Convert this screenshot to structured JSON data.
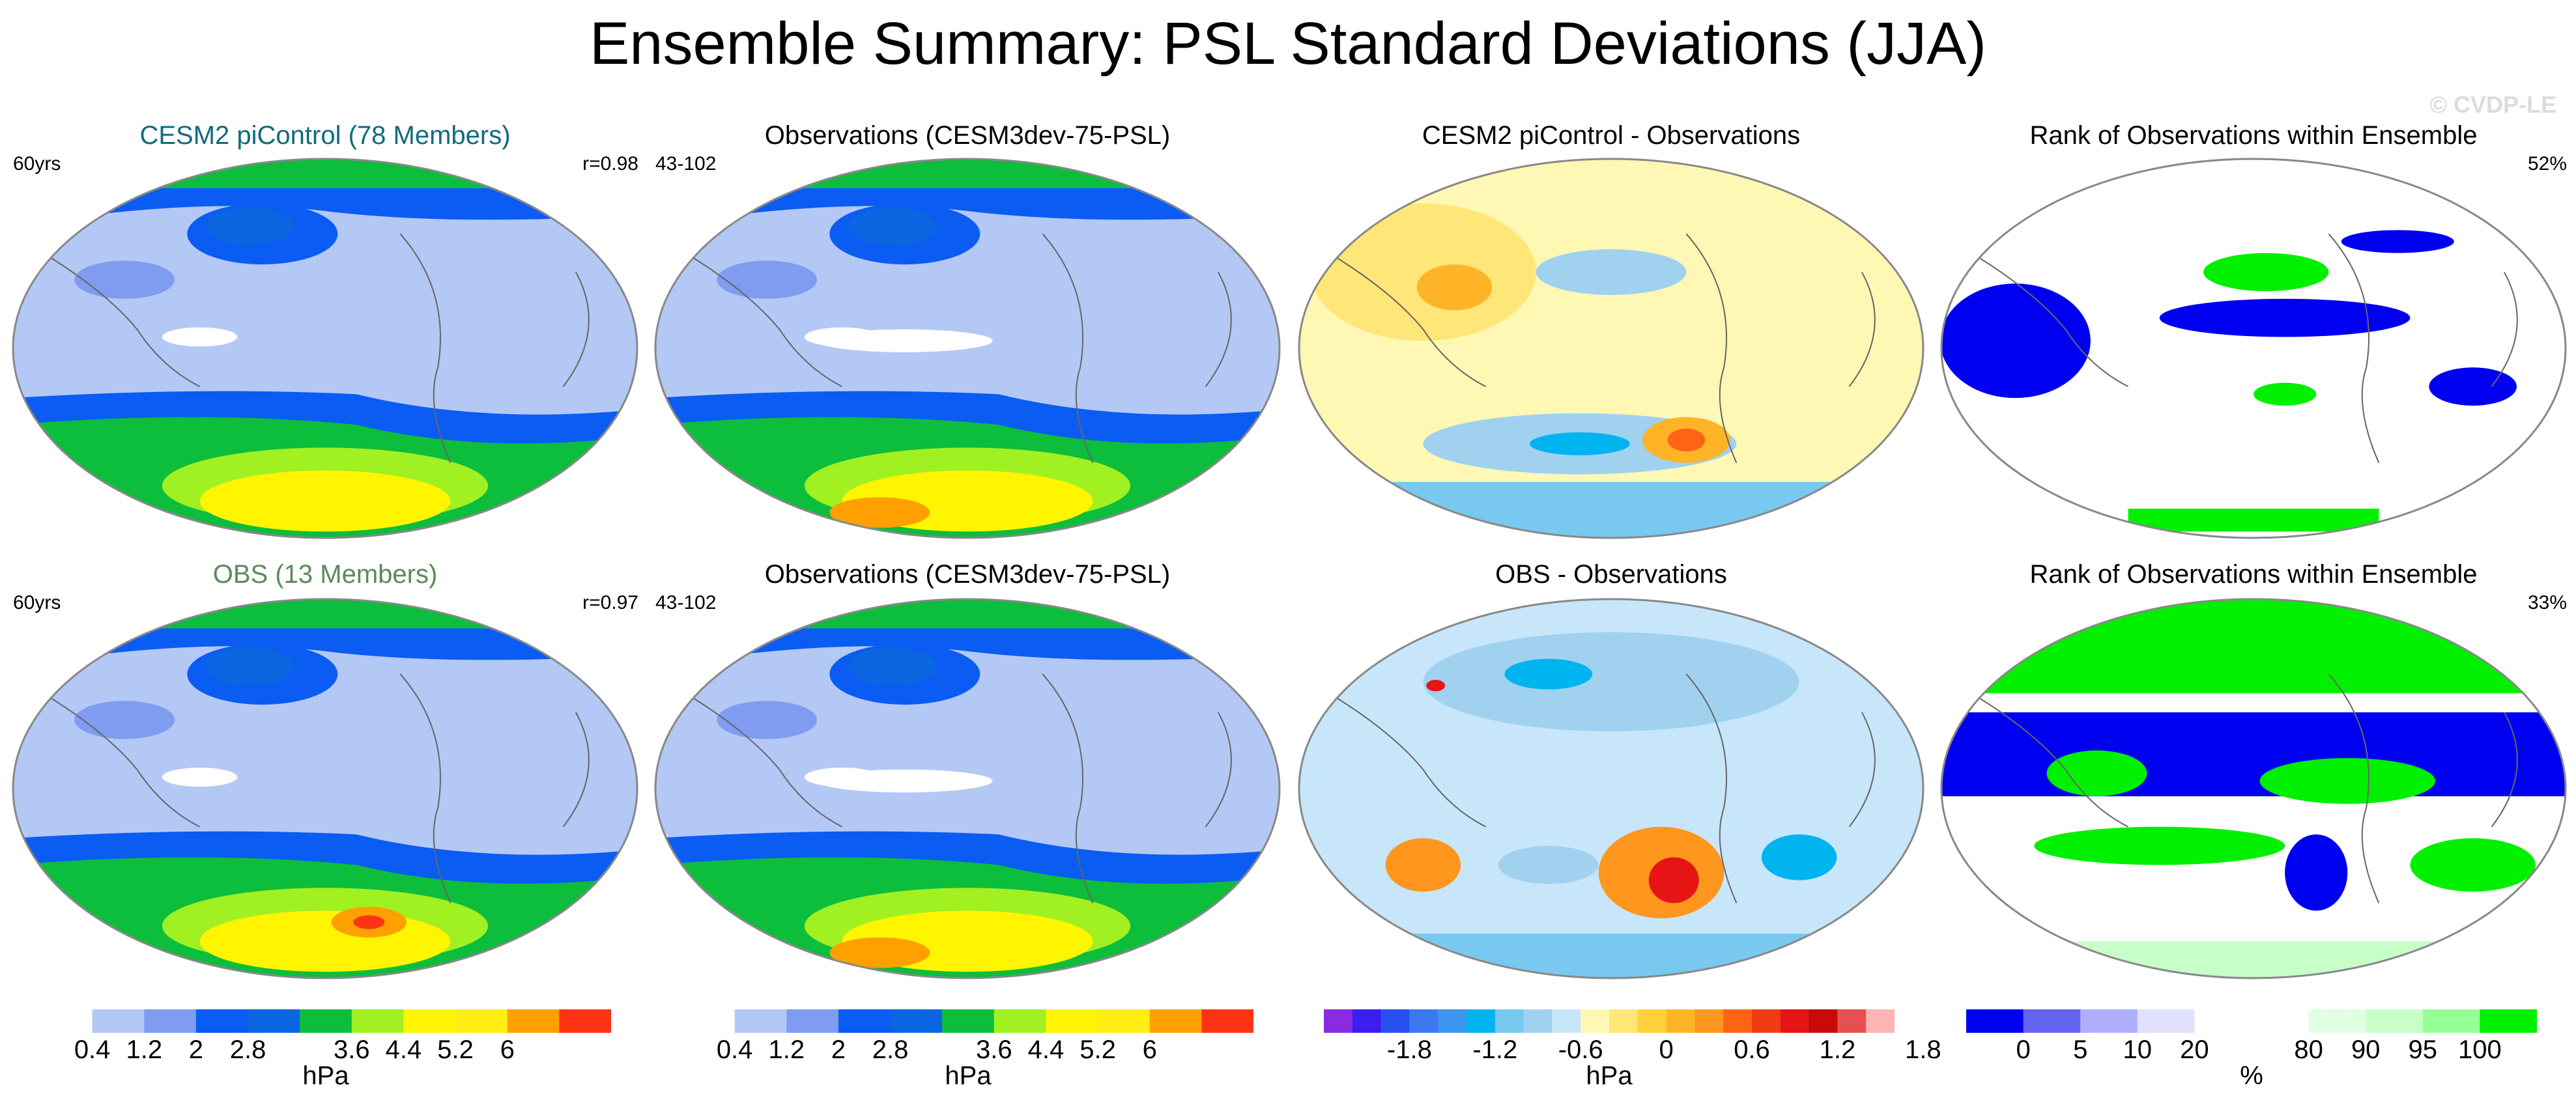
{
  "title": "Ensemble Summary: PSL Standard Deviations (JJA)",
  "watermark": "© CVDP-LE",
  "colors": {
    "title_model": "#0f6b7d",
    "title_obs": "#5b8a5b",
    "map_outline": "#888888",
    "coast": "#666666"
  },
  "panels": [
    {
      "title": "CESM2 piControl (78 Members)",
      "title_color": "#0f6b7d",
      "left": "60yrs",
      "right": "r=0.98",
      "kind": "std_model"
    },
    {
      "title": "Observations (CESM3dev-75-PSL)",
      "title_color": "#000000",
      "left": "43-102",
      "right": "",
      "kind": "std_obs"
    },
    {
      "title": "CESM2 piControl - Observations",
      "title_color": "#000000",
      "left": "",
      "right": "",
      "kind": "diff_model"
    },
    {
      "title": "Rank of Observations within Ensemble",
      "title_color": "#000000",
      "left": "",
      "right": "52%",
      "kind": "rank_model"
    },
    {
      "title": "OBS (13 Members)",
      "title_color": "#5b8a5b",
      "left": "60yrs",
      "right": "r=0.97",
      "kind": "std_model2"
    },
    {
      "title": "Observations (CESM3dev-75-PSL)",
      "title_color": "#000000",
      "left": "43-102",
      "right": "",
      "kind": "std_obs2"
    },
    {
      "title": "OBS - Observations",
      "title_color": "#000000",
      "left": "",
      "right": "",
      "kind": "diff_obs"
    },
    {
      "title": "Rank of Observations within Ensemble",
      "title_color": "#000000",
      "left": "",
      "right": "33%",
      "kind": "rank_obs"
    }
  ],
  "colorbars": [
    {
      "unit": "hPa",
      "labels": [
        "0.4",
        "1.2",
        "2",
        "2.8",
        "3.6",
        "4.4",
        "5.2",
        "6"
      ],
      "colors": [
        "#ffffff",
        "#b4c8f5",
        "#7f9cf0",
        "#0a5cf2",
        "#0a66e0",
        "#0dbd3c",
        "#a0f022",
        "#fff500",
        "#ffee14",
        "#ffa000",
        "#ff3214"
      ]
    },
    {
      "unit": "hPa",
      "labels": [
        "0.4",
        "1.2",
        "2",
        "2.8",
        "3.6",
        "4.4",
        "5.2",
        "6"
      ],
      "colors": [
        "#ffffff",
        "#b4c8f5",
        "#7f9cf0",
        "#0a5cf2",
        "#0a66e0",
        "#0dbd3c",
        "#a0f022",
        "#fff500",
        "#ffee14",
        "#ffa000",
        "#ff3214"
      ]
    },
    {
      "unit": "hPa",
      "labels": [
        "-1.8",
        "-1.2",
        "-0.6",
        "0",
        "0.6",
        "1.2",
        "1.8"
      ],
      "colors": [
        "#8a2be2",
        "#3c1ef0",
        "#2850f0",
        "#3c78f0",
        "#3c96f0",
        "#00b4f0",
        "#78c8f0",
        "#a0d2f0",
        "#c8e6fa",
        "#fff8b4",
        "#ffe678",
        "#ffd23c",
        "#ffb428",
        "#ff961e",
        "#ff6414",
        "#f03c14",
        "#e61414",
        "#c80a0a",
        "#e65050",
        "#ffb4b4"
      ]
    },
    {
      "unit": "%",
      "labels": [
        "0",
        "5",
        "10",
        "20",
        "80",
        "90",
        "95",
        "100"
      ],
      "colors": [
        "#0000f0",
        "#6464f0",
        "#afafff",
        "#e1e1ff",
        "#ffffff",
        "#ffffff",
        "#e1ffe1",
        "#c8ffc8",
        "#96ff96",
        "#00f000"
      ]
    }
  ]
}
